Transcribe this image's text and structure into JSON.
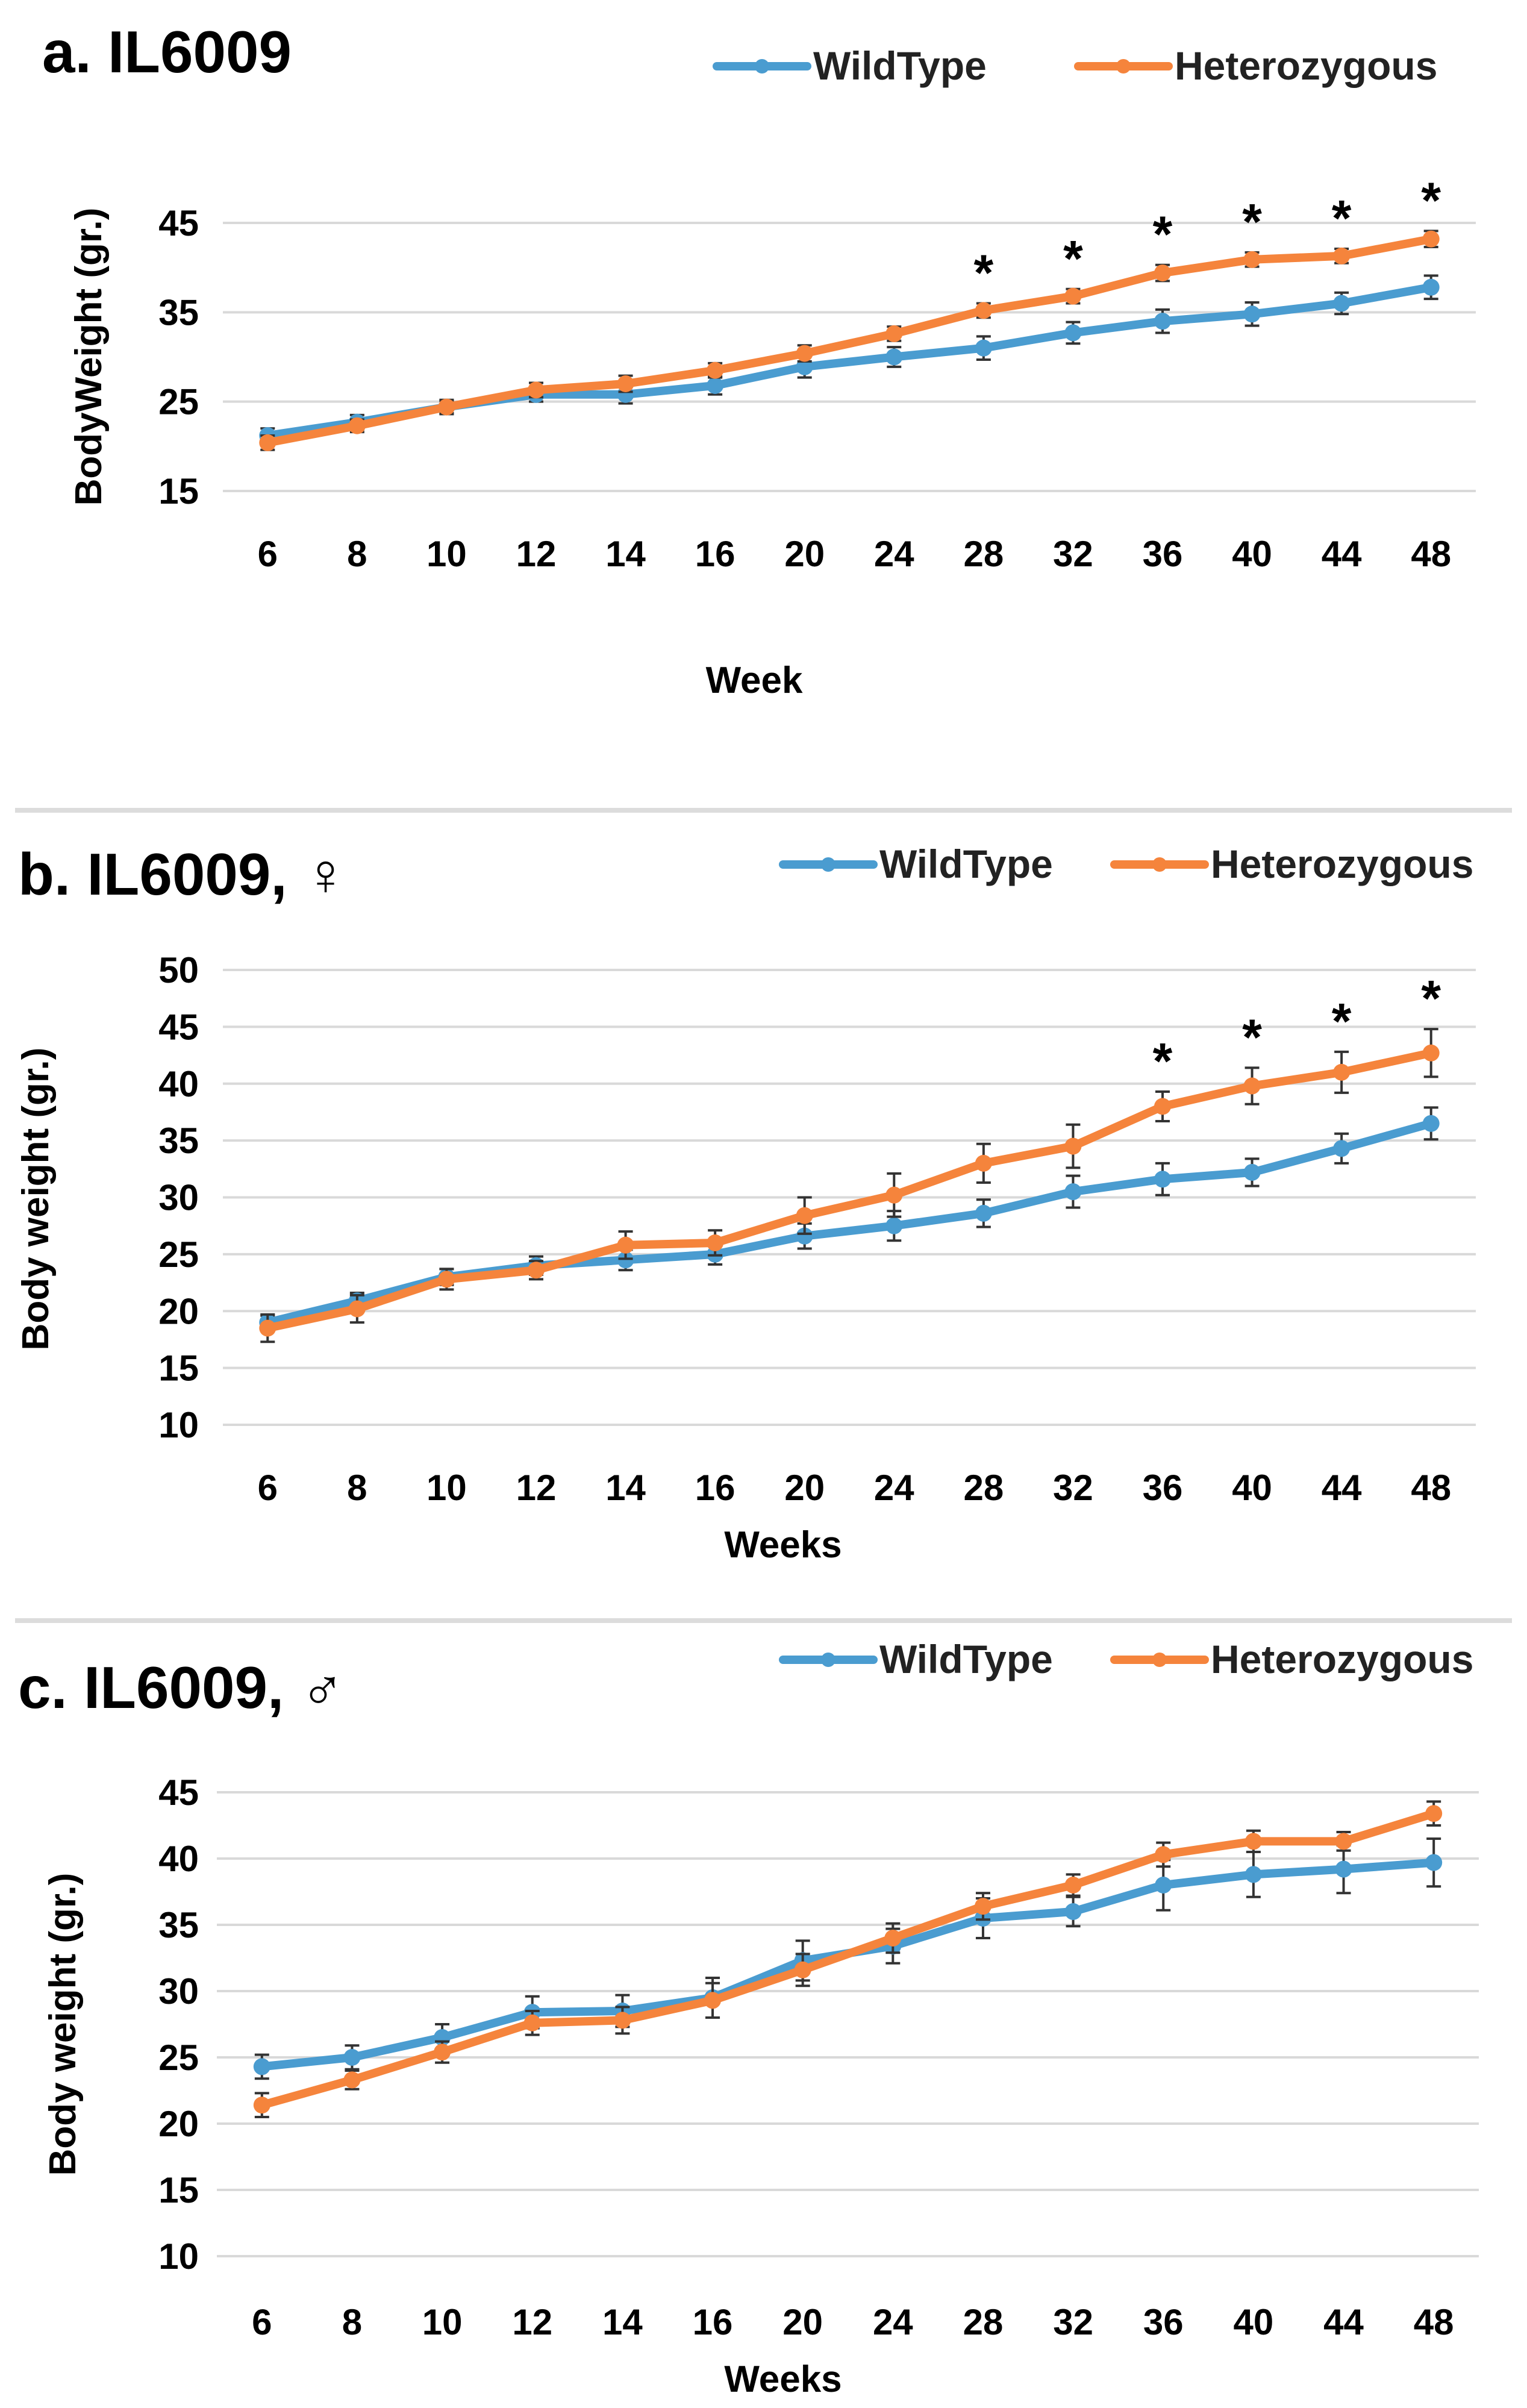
{
  "colors": {
    "wild": "#4a9cd0",
    "het": "#f5843c"
  },
  "chart_data": [
    {
      "type": "line",
      "title": "a. IL6009",
      "xlabel": "Week",
      "ylabel": "BodyWeight (gr.)",
      "yticks": [
        15,
        25,
        35,
        45
      ],
      "ylim": [
        15,
        45
      ],
      "categories": [
        "6",
        "8",
        "10",
        "12",
        "14",
        "16",
        "20",
        "24",
        "28",
        "32",
        "36",
        "40",
        "44",
        "48"
      ],
      "legend": [
        "WildType",
        "Heterozygous"
      ],
      "series": [
        {
          "name": "WildType",
          "values": [
            21.2,
            22.7,
            24.4,
            25.8,
            25.8,
            26.8,
            28.9,
            30.0,
            31.0,
            32.7,
            34.0,
            34.8,
            36.0,
            37.8
          ],
          "errors": [
            0.8,
            0.8,
            0.8,
            0.8,
            1.0,
            1.0,
            1.2,
            1.1,
            1.3,
            1.2,
            1.3,
            1.3,
            1.2,
            1.3
          ]
        },
        {
          "name": "Heterozygous",
          "values": [
            20.4,
            22.3,
            24.4,
            26.3,
            27.0,
            28.5,
            30.4,
            32.6,
            35.2,
            36.8,
            39.4,
            40.9,
            41.3,
            43.2
          ],
          "errors": [
            0.8,
            0.7,
            0.7,
            0.8,
            0.9,
            0.8,
            0.9,
            0.8,
            0.8,
            0.8,
            0.9,
            0.8,
            0.8,
            0.9
          ]
        }
      ],
      "significance": [
        {
          "x": "28",
          "label": "*"
        },
        {
          "x": "32",
          "label": "*"
        },
        {
          "x": "36",
          "label": "*"
        },
        {
          "x": "40",
          "label": "*"
        },
        {
          "x": "44",
          "label": "*"
        },
        {
          "x": "48",
          "label": "*"
        }
      ]
    },
    {
      "type": "line",
      "title": "b. IL6009, ♀",
      "xlabel": "Weeks",
      "ylabel": "Body weight (gr.)",
      "yticks": [
        10,
        15,
        20,
        25,
        30,
        35,
        40,
        45,
        50
      ],
      "ylim": [
        10,
        50
      ],
      "categories": [
        "6",
        "8",
        "10",
        "12",
        "14",
        "16",
        "20",
        "24",
        "28",
        "32",
        "36",
        "40",
        "44",
        "48"
      ],
      "legend": [
        "WildType",
        "Heterozygous"
      ],
      "series": [
        {
          "name": "WildType",
          "values": [
            19.0,
            20.9,
            23.0,
            24.0,
            24.5,
            25.0,
            26.6,
            27.5,
            28.6,
            30.5,
            31.6,
            32.2,
            34.3,
            36.5
          ],
          "errors": [
            0.6,
            0.7,
            0.7,
            0.8,
            0.9,
            0.9,
            1.1,
            1.3,
            1.2,
            1.4,
            1.4,
            1.2,
            1.3,
            1.4
          ]
        },
        {
          "name": "Heterozygous",
          "values": [
            18.5,
            20.2,
            22.8,
            23.6,
            25.8,
            26.0,
            28.4,
            30.2,
            33.0,
            34.5,
            38.0,
            39.8,
            41.0,
            42.7
          ],
          "errors": [
            1.2,
            1.2,
            0.9,
            0.8,
            1.2,
            1.1,
            1.6,
            1.9,
            1.7,
            1.9,
            1.3,
            1.6,
            1.8,
            2.1
          ]
        }
      ],
      "significance": [
        {
          "x": "36",
          "label": "*"
        },
        {
          "x": "40",
          "label": "*"
        },
        {
          "x": "44",
          "label": "*"
        },
        {
          "x": "48",
          "label": "*"
        }
      ]
    },
    {
      "type": "line",
      "title": "c. IL6009, ♂",
      "xlabel": "Weeks",
      "ylabel": "Body weight (gr.)",
      "yticks": [
        10,
        15,
        20,
        25,
        30,
        35,
        40,
        45
      ],
      "ylim": [
        10,
        45
      ],
      "categories": [
        "6",
        "8",
        "10",
        "12",
        "14",
        "16",
        "20",
        "24",
        "28",
        "32",
        "36",
        "40",
        "44",
        "48"
      ],
      "legend": [
        "WildType",
        "Heterozygous"
      ],
      "series": [
        {
          "name": "WildType",
          "values": [
            24.3,
            25.0,
            26.5,
            28.4,
            28.5,
            29.5,
            32.3,
            33.4,
            35.5,
            36.0,
            38.0,
            38.8,
            39.2,
            39.7
          ],
          "errors": [
            0.9,
            0.9,
            1.0,
            1.2,
            1.2,
            1.5,
            1.5,
            1.3,
            1.5,
            1.1,
            1.9,
            1.7,
            1.8,
            1.8
          ]
        },
        {
          "name": "Heterozygous",
          "values": [
            21.4,
            23.3,
            25.4,
            27.6,
            27.8,
            29.3,
            31.6,
            34.0,
            36.4,
            38.0,
            40.3,
            41.3,
            41.3,
            43.4
          ],
          "errors": [
            0.9,
            0.7,
            0.8,
            0.9,
            1.0,
            1.3,
            1.2,
            1.1,
            1.0,
            0.8,
            0.9,
            0.8,
            0.7,
            0.9
          ]
        }
      ],
      "significance": []
    }
  ]
}
